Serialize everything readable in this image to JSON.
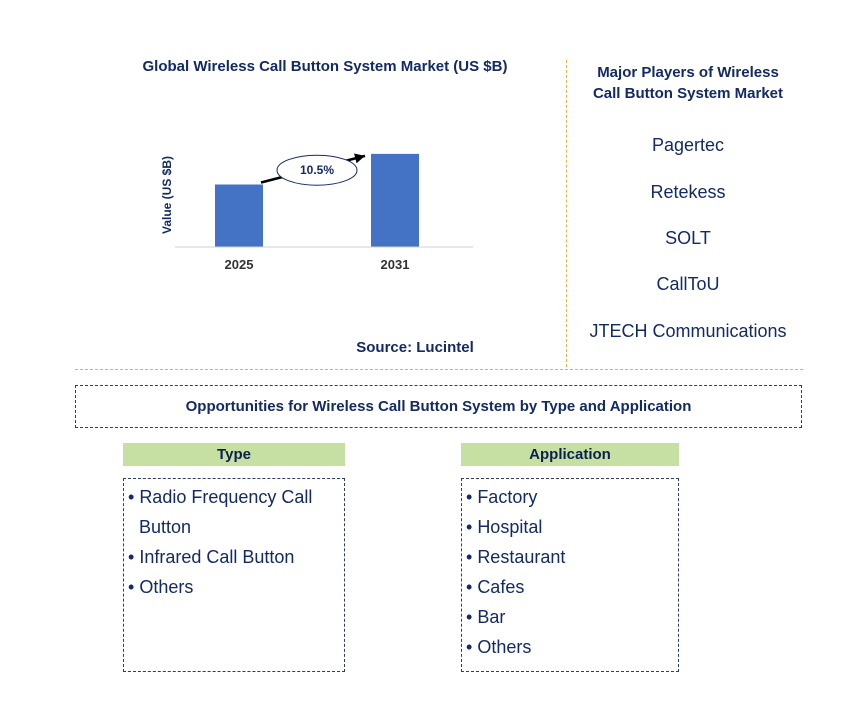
{
  "chart": {
    "title": "Global Wireless Call Button System Market (US $B)",
    "source": "Source: Lucintel"
  },
  "chart_data": {
    "type": "bar",
    "categories": [
      "2025",
      "2031"
    ],
    "values": [
      1.0,
      1.49
    ],
    "ylabel": "Value (US $B)",
    "xlabel": "",
    "ylim": [
      0,
      1.6
    ],
    "annotation": "10.5%",
    "bar_color": "#4472c4",
    "grid": false
  },
  "players": {
    "title_line1": "Major Players of Wireless",
    "title_line2": "Call Button System Market",
    "items": [
      "Pagertec",
      "Retekess",
      "SOLT",
      "CallToU",
      "JTECH Communications"
    ]
  },
  "opportunities": {
    "title": "Opportunities for Wireless Call Button System by Type and Application"
  },
  "type": {
    "header": "Type",
    "items": [
      "Radio Frequency Call Button",
      "Infrared Call Button",
      "Others"
    ]
  },
  "application": {
    "header": "Application",
    "items": [
      "Factory",
      "Hospital",
      "Restaurant",
      "Cafes",
      "Bar",
      "Others"
    ]
  },
  "colors": {
    "accent_divider": "#e8b14c",
    "header_fill": "#c6e0a4",
    "text_navy": "#132a66"
  }
}
